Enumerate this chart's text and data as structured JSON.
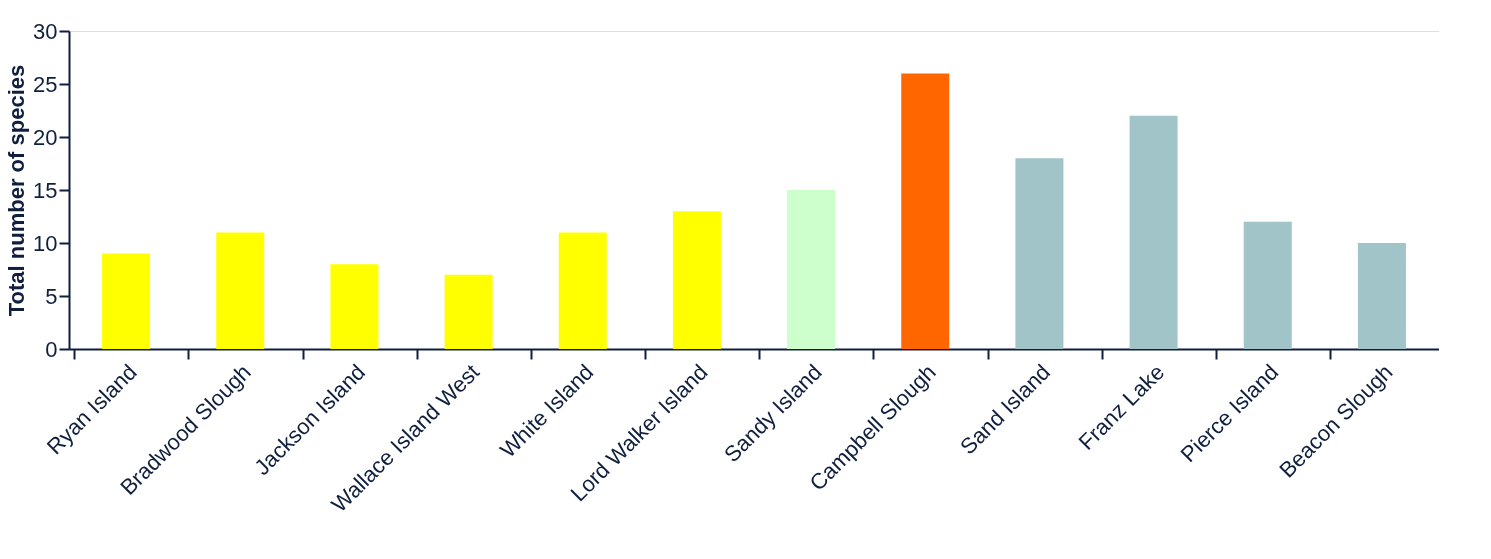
{
  "chart_data": {
    "type": "bar",
    "ylabel": "Total number of species",
    "categories": [
      "Ryan Island",
      "Bradwood Slough",
      "Jackson Island",
      "Wallace Island West",
      "White Island",
      "Lord Walker Island",
      "Sandy Island",
      "Campbell Slough",
      "Sand Island",
      "Franz Lake",
      "Pierce Island",
      "Beacon Slough"
    ],
    "values": [
      9,
      11,
      8,
      7,
      11,
      13,
      15,
      26,
      18,
      22,
      12,
      10
    ],
    "colors": [
      "#ffff00",
      "#ffff00",
      "#ffff00",
      "#ffff00",
      "#ffff00",
      "#ffff00",
      "#ccffcc",
      "#ff6600",
      "#a0c4c8",
      "#a0c4c8",
      "#a0c4c8",
      "#a0c4c8"
    ],
    "ylim": [
      0,
      30
    ],
    "yticks": [
      0,
      5,
      10,
      15,
      20,
      25,
      30
    ],
    "grid": false
  }
}
